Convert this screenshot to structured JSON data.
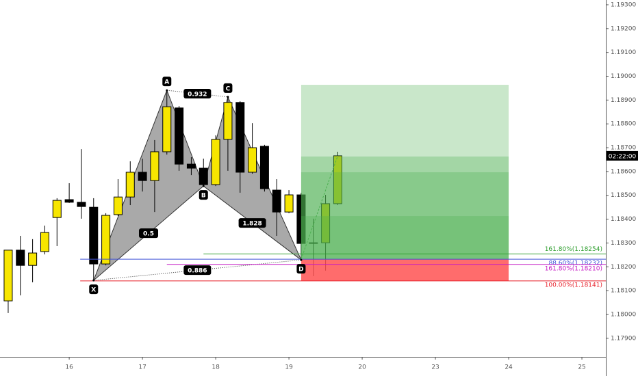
{
  "chart_data": {
    "type": "candlestick",
    "open": [
      1.18057,
      1.1827,
      1.18206,
      1.18264,
      1.18407,
      1.18482,
      1.18471,
      1.1845,
      1.18212,
      1.18419,
      1.18493,
      1.18597,
      1.18562,
      1.18683,
      1.18867,
      1.18631,
      1.18614,
      1.18545,
      1.18735,
      1.1889,
      1.18597,
      1.18706,
      1.18522,
      1.1843,
      1.18502,
      1.18301,
      1.18301,
      1.18465
    ],
    "high": [
      1.1827,
      1.1833,
      1.18316,
      1.18373,
      1.18488,
      1.18551,
      1.18694,
      1.18488,
      1.18425,
      1.18568,
      1.18643,
      1.18654,
      1.18732,
      1.18941,
      1.18875,
      1.1866,
      1.18654,
      1.18752,
      1.18918,
      1.18895,
      1.18803,
      1.18712,
      1.18568,
      1.18522,
      1.18511,
      1.18402,
      1.18502,
      1.18683
    ],
    "low": [
      1.18006,
      1.1808,
      1.18135,
      1.18252,
      1.18287,
      1.18468,
      1.18402,
      1.18143,
      1.18206,
      1.18413,
      1.18459,
      1.18516,
      1.1843,
      1.18671,
      1.18603,
      1.18585,
      1.18539,
      1.18539,
      1.18603,
      1.18511,
      1.18591,
      1.18516,
      1.1833,
      1.18425,
      1.18229,
      1.18161,
      1.18184,
      1.18459
    ],
    "close": [
      1.1827,
      1.18206,
      1.18258,
      1.18344,
      1.18479,
      1.18471,
      1.18453,
      1.18212,
      1.18416,
      1.18493,
      1.18597,
      1.18562,
      1.18683,
      1.18872,
      1.18631,
      1.18614,
      1.18545,
      1.18735,
      1.1889,
      1.18597,
      1.187,
      1.18528,
      1.1843,
      1.18502,
      1.18298,
      1.18298,
      1.18465,
      1.18666
    ],
    "up_color": "#f7e600",
    "down_color": "#000000",
    "xlim": [
      -0.67,
      48.96
    ],
    "ylim": [
      1.17822,
      1.1932
    ],
    "xticks": [
      {
        "value": 5,
        "label": "16"
      },
      {
        "value": 11,
        "label": "17"
      },
      {
        "value": 17,
        "label": "18"
      },
      {
        "value": 23,
        "label": "19"
      },
      {
        "value": 29,
        "label": "20"
      },
      {
        "value": 35,
        "label": "23"
      },
      {
        "value": 41,
        "label": "24"
      },
      {
        "value": 47,
        "label": "25"
      }
    ],
    "yticks": [
      {
        "value": 1.179,
        "label": "1.17900"
      },
      {
        "value": 1.18,
        "label": "1.18000"
      },
      {
        "value": 1.181,
        "label": "1.18100"
      },
      {
        "value": 1.182,
        "label": "1.18200"
      },
      {
        "value": 1.183,
        "label": "1.18300"
      },
      {
        "value": 1.184,
        "label": "1.18400"
      },
      {
        "value": 1.185,
        "label": "1.18500"
      },
      {
        "value": 1.186,
        "label": "1.18600"
      },
      {
        "value": 1.187,
        "label": "1.18700"
      },
      {
        "value": 1.188,
        "label": "1.18800"
      },
      {
        "value": 1.189,
        "label": "1.18900"
      },
      {
        "value": 1.19,
        "label": "1.19000"
      },
      {
        "value": 1.191,
        "label": "1.19100"
      },
      {
        "value": 1.192,
        "label": "1.19200"
      },
      {
        "value": 1.193,
        "label": "1.19300"
      }
    ],
    "pattern": {
      "points": [
        {
          "label": "X",
          "x": 7,
          "y": 1.18143
        },
        {
          "label": "A",
          "x": 13,
          "y": 1.18941
        },
        {
          "label": "B",
          "x": 16,
          "y": 1.18539
        },
        {
          "label": "C",
          "x": 18,
          "y": 1.18913
        },
        {
          "label": "D",
          "x": 24,
          "y": 1.18229
        }
      ],
      "ratios": [
        {
          "label": "0.5",
          "legs": [
            "X",
            "B"
          ]
        },
        {
          "label": "0.932",
          "legs": [
            "A",
            "C"
          ]
        },
        {
          "label": "1.828",
          "legs": [
            "B",
            "D"
          ]
        },
        {
          "label": "0.886",
          "legs": [
            "X",
            "D"
          ]
        }
      ]
    },
    "levels": [
      {
        "label": "161.80%(1.18254)",
        "value": 1.18254,
        "color": "#2e9e2e",
        "from": 16
      },
      {
        "label": "88.60%(1.18232)",
        "value": 1.18232,
        "color": "#3f51d6",
        "from": 5.9
      },
      {
        "label": "161.80%(1.18210)",
        "value": 1.1821,
        "color": "#c51bc5",
        "from": 13
      },
      {
        "label": "100.00%(1.18141)",
        "value": 1.18141,
        "color": "#e8202a",
        "from": 5.9
      }
    ],
    "position": {
      "from": 24,
      "to": 41,
      "entry": 1.18232,
      "stop": 1.18141,
      "targets": [
        1.18413,
        1.18597,
        1.18663,
        1.18964
      ],
      "profit_color": "#4caf50",
      "loss_color": "#ff5252"
    },
    "countdown": "02:22:00"
  }
}
